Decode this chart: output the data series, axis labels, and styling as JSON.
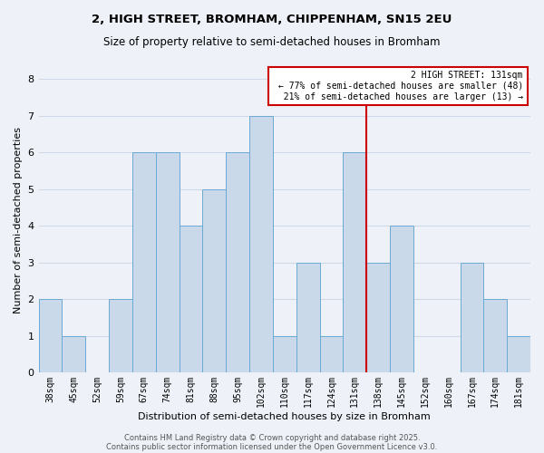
{
  "title1": "2, HIGH STREET, BROMHAM, CHIPPENHAM, SN15 2EU",
  "title2": "Size of property relative to semi-detached houses in Bromham",
  "xlabel": "Distribution of semi-detached houses by size in Bromham",
  "ylabel": "Number of semi-detached properties",
  "footnote1": "Contains HM Land Registry data © Crown copyright and database right 2025.",
  "footnote2": "Contains public sector information licensed under the Open Government Licence v3.0.",
  "bins": [
    "38sqm",
    "45sqm",
    "52sqm",
    "59sqm",
    "67sqm",
    "74sqm",
    "81sqm",
    "88sqm",
    "95sqm",
    "102sqm",
    "110sqm",
    "117sqm",
    "124sqm",
    "131sqm",
    "138sqm",
    "145sqm",
    "152sqm",
    "160sqm",
    "167sqm",
    "174sqm",
    "181sqm"
  ],
  "values": [
    2,
    1,
    0,
    2,
    6,
    6,
    4,
    5,
    6,
    7,
    1,
    3,
    1,
    6,
    3,
    4,
    0,
    0,
    3,
    2,
    1
  ],
  "bar_color": "#c9d9ea",
  "bar_edge_color": "#6aaad4",
  "grid_color": "#d0d8e8",
  "bg_color": "#eef2f8",
  "vline_x_index": 13,
  "vline_color": "#cc0000",
  "annotation_text": "2 HIGH STREET: 131sqm\n← 77% of semi-detached houses are smaller (48)\n  21% of semi-detached houses are larger (13) →",
  "annotation_box_color": "#cc0000",
  "ylim": [
    0,
    8.3
  ],
  "yticks": [
    0,
    1,
    2,
    3,
    4,
    5,
    6,
    7,
    8
  ]
}
